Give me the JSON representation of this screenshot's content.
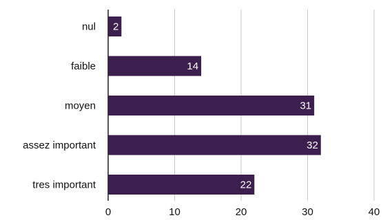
{
  "chart_data": {
    "type": "bar",
    "orientation": "horizontal",
    "categories": [
      "nul",
      "faible",
      "moyen",
      "assez important",
      "tres important"
    ],
    "values": [
      2,
      14,
      31,
      32,
      22
    ],
    "data_labels": [
      "2",
      "14",
      "31",
      "32",
      "22"
    ],
    "title": "",
    "xlabel": "",
    "ylabel": "",
    "xlim": [
      0,
      40
    ],
    "xticks": [
      0,
      10,
      20,
      30,
      40
    ],
    "xtick_labels": [
      "0",
      "10",
      "20",
      "30",
      "40"
    ],
    "grid": "vertical",
    "legend": "none",
    "bar_color": "#3d1f4f",
    "grid_color": "#c8c8c8",
    "axis_color": "#222222"
  }
}
